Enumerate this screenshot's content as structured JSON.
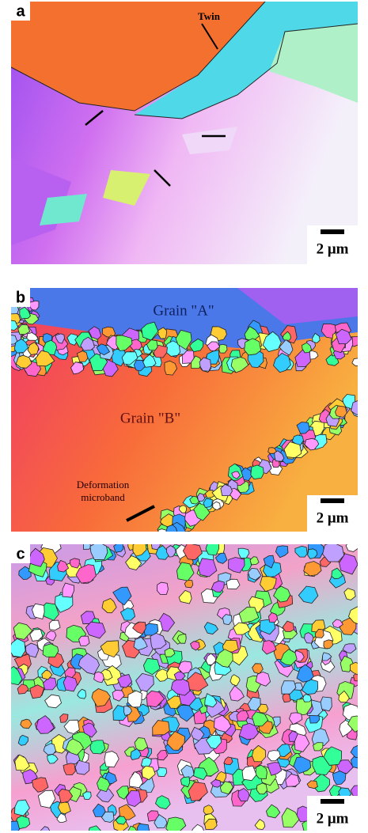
{
  "panels": [
    {
      "label": "a",
      "twin_label": "Twin",
      "scale_bar": "2 μm"
    },
    {
      "label": "b",
      "grain_a": "Grain \"A\"",
      "grain_b": "Grain \"B\"",
      "band_label": [
        "Deformation",
        "microband"
      ],
      "scale_bar": "2 μm"
    },
    {
      "label": "c",
      "scale_bar": "2 μm"
    }
  ]
}
